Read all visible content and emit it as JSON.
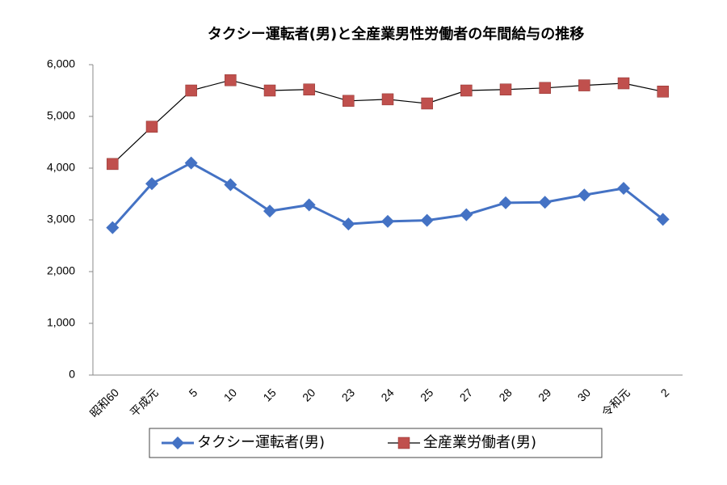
{
  "chart_data": {
    "type": "line",
    "title": "タクシー運転者(男)と全産業男性労働者の年間給与の推移",
    "categories": [
      "昭和60",
      "平成元",
      "5",
      "10",
      "15",
      "20",
      "23",
      "24",
      "25",
      "27",
      "28",
      "29",
      "30",
      "令和元",
      "2"
    ],
    "series": [
      {
        "name": "タクシー運転者(男)",
        "color": "#4472c4",
        "marker": "diamond",
        "values": [
          2850,
          3700,
          4100,
          3680,
          3170,
          3290,
          2920,
          2970,
          2990,
          3100,
          3330,
          3340,
          3480,
          3610,
          3010
        ]
      },
      {
        "name": "全産業労働者(男)",
        "color": "#c0504d",
        "marker": "square",
        "values": [
          4080,
          4800,
          5500,
          5700,
          5500,
          5520,
          5300,
          5330,
          5250,
          5500,
          5520,
          5550,
          5600,
          5640,
          5480
        ]
      }
    ],
    "ylim": [
      0,
      6000
    ],
    "yticks": [
      0,
      {
        "value": 1000,
        "label": "1,000"
      },
      {
        "value": 2000,
        "label": "2,000"
      },
      {
        "value": 3000,
        "label": "3,000"
      },
      {
        "value": 4000,
        "label": "4,000"
      },
      {
        "value": 5000,
        "label": "5,000"
      },
      {
        "value": 6000,
        "label": "6,000"
      }
    ],
    "grid": false
  }
}
